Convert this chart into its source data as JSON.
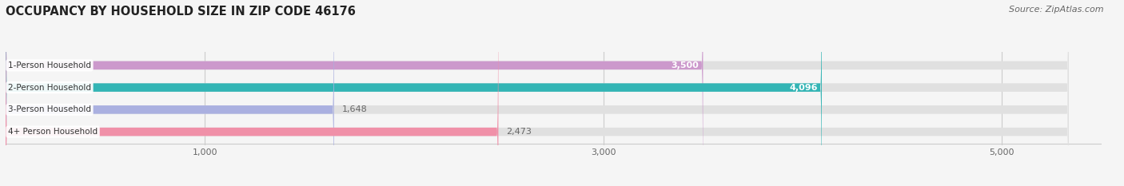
{
  "title": "OCCUPANCY BY HOUSEHOLD SIZE IN ZIP CODE 46176",
  "source": "Source: ZipAtlas.com",
  "categories": [
    "1-Person Household",
    "2-Person Household",
    "3-Person Household",
    "4+ Person Household"
  ],
  "values": [
    3500,
    4096,
    1648,
    2473
  ],
  "bar_colors": [
    "#cc99cc",
    "#33b5b5",
    "#aab0e0",
    "#f090a8"
  ],
  "label_colors": [
    "#ffffff",
    "#ffffff",
    "#666666",
    "#666666"
  ],
  "xlim": [
    0,
    5500
  ],
  "xticks": [
    1000,
    3000,
    5000
  ],
  "xticklabels": [
    "1,000",
    "3,000",
    "5,000"
  ],
  "title_fontsize": 10.5,
  "source_fontsize": 8,
  "bar_label_fontsize": 8,
  "category_fontsize": 7.5,
  "bar_height": 0.38,
  "background_color": "#f5f5f5",
  "bar_bg_color": "#e0e0e0",
  "value_labels": [
    "3,500",
    "4,096",
    "1,648",
    "2,473"
  ],
  "value_label_colors": [
    "#ffffff",
    "#ffffff",
    "#666666",
    "#666666"
  ]
}
